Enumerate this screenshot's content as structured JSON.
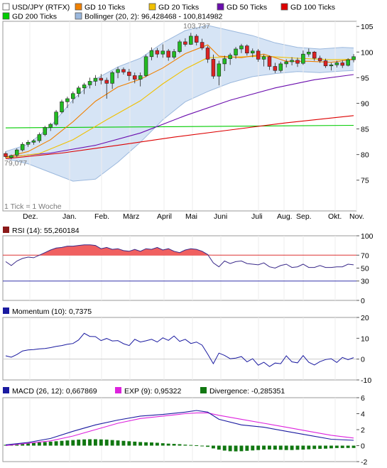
{
  "colors": {
    "up": "#22bb22",
    "down": "#dd2222",
    "gd10": "#f08000",
    "gd20": "#f0c000",
    "gd50": "#6a0dad",
    "gd100": "#dd0000",
    "gd200": "#00cc00",
    "band_fill": "#d6e4f5",
    "band_line": "#9bb8dd",
    "rsi_line": "#3a2a8a",
    "rsi_fill": "#f06060",
    "rsi_upper": "#dd3333",
    "rsi_lower": "#3333aa",
    "momentum": "#1a1aa0",
    "macd": "#1a1aa0",
    "exp": "#dd22dd",
    "divergence": "#117711"
  },
  "chart_data": [
    {
      "type": "candlestick",
      "legend": [
        {
          "key": "main",
          "label": "USD/JPY (RTFX)",
          "color": "#ffffff"
        },
        {
          "key": "gd10",
          "label": "GD 10 Ticks",
          "color": "#f08000"
        },
        {
          "key": "gd20",
          "label": "GD 20 Ticks",
          "color": "#f0c000"
        },
        {
          "key": "gd50",
          "label": "GD 50 Ticks",
          "color": "#6a0dad"
        },
        {
          "key": "gd100",
          "label": "GD 100 Ticks",
          "color": "#dd0000"
        },
        {
          "key": "gd200",
          "label": "GD 200 Ticks",
          "color": "#00cc00"
        },
        {
          "key": "boll",
          "label": "Bollinger (20, 2): 96,428468 - 100,814982",
          "color": "#9bb8dd"
        }
      ],
      "x_labels": [
        "Dez.",
        "Jan.",
        "Feb.",
        "März",
        "April",
        "Mai",
        "Juni",
        "Juli",
        "Aug.",
        "Sep.",
        "Okt.",
        "Nov."
      ],
      "y_ticks": [
        75,
        80,
        85,
        90,
        95,
        100,
        105
      ],
      "ylim": [
        69,
        106
      ],
      "note": "1 Tick = 1 Woche",
      "high_label": "103,737",
      "low_label": "79,077",
      "candles": [
        {
          "o": 80.2,
          "h": 80.6,
          "l": 79.3,
          "c": 79.6
        },
        {
          "o": 79.4,
          "h": 80.0,
          "l": 79.08,
          "c": 79.8
        },
        {
          "o": 79.9,
          "h": 81.2,
          "l": 79.5,
          "c": 80.9
        },
        {
          "o": 80.9,
          "h": 82.4,
          "l": 80.6,
          "c": 82.0
        },
        {
          "o": 82.0,
          "h": 82.8,
          "l": 81.5,
          "c": 82.4
        },
        {
          "o": 82.4,
          "h": 83.0,
          "l": 81.9,
          "c": 82.7
        },
        {
          "o": 82.7,
          "h": 84.3,
          "l": 82.3,
          "c": 83.9
        },
        {
          "o": 83.9,
          "h": 85.6,
          "l": 83.6,
          "c": 85.3
        },
        {
          "o": 85.3,
          "h": 86.2,
          "l": 84.6,
          "c": 85.9
        },
        {
          "o": 85.9,
          "h": 88.7,
          "l": 85.6,
          "c": 88.3
        },
        {
          "o": 88.3,
          "h": 90.7,
          "l": 88.0,
          "c": 90.3
        },
        {
          "o": 90.3,
          "h": 91.3,
          "l": 89.1,
          "c": 90.9
        },
        {
          "o": 90.9,
          "h": 92.3,
          "l": 90.0,
          "c": 91.9
        },
        {
          "o": 91.9,
          "h": 93.4,
          "l": 91.2,
          "c": 93.0
        },
        {
          "o": 93.0,
          "h": 94.0,
          "l": 91.8,
          "c": 93.6
        },
        {
          "o": 93.6,
          "h": 95.0,
          "l": 92.9,
          "c": 94.3
        },
        {
          "o": 94.3,
          "h": 95.5,
          "l": 93.4,
          "c": 94.9
        },
        {
          "o": 94.9,
          "h": 95.7,
          "l": 93.7,
          "c": 94.5
        },
        {
          "o": 94.5,
          "h": 95.0,
          "l": 90.9,
          "c": 93.9
        },
        {
          "o": 93.9,
          "h": 96.3,
          "l": 92.8,
          "c": 96.0
        },
        {
          "o": 96.0,
          "h": 97.1,
          "l": 94.9,
          "c": 96.6
        },
        {
          "o": 96.6,
          "h": 97.0,
          "l": 95.6,
          "c": 96.1
        },
        {
          "o": 96.1,
          "h": 96.7,
          "l": 94.4,
          "c": 95.4
        },
        {
          "o": 95.4,
          "h": 96.0,
          "l": 93.9,
          "c": 94.7
        },
        {
          "o": 94.7,
          "h": 96.0,
          "l": 93.3,
          "c": 95.4
        },
        {
          "o": 95.4,
          "h": 99.5,
          "l": 95.1,
          "c": 99.1
        },
        {
          "o": 99.1,
          "h": 100.9,
          "l": 98.4,
          "c": 100.3
        },
        {
          "o": 100.3,
          "h": 100.8,
          "l": 98.9,
          "c": 99.6
        },
        {
          "o": 99.6,
          "h": 101.5,
          "l": 98.9,
          "c": 100.2
        },
        {
          "o": 100.2,
          "h": 100.6,
          "l": 98.3,
          "c": 99.0
        },
        {
          "o": 99.0,
          "h": 100.6,
          "l": 98.6,
          "c": 100.1
        },
        {
          "o": 100.1,
          "h": 102.4,
          "l": 99.8,
          "c": 102.0
        },
        {
          "o": 102.0,
          "h": 102.7,
          "l": 101.1,
          "c": 101.5
        },
        {
          "o": 101.5,
          "h": 103.737,
          "l": 101.4,
          "c": 103.1
        },
        {
          "o": 103.1,
          "h": 103.5,
          "l": 101.3,
          "c": 101.9
        },
        {
          "o": 101.9,
          "h": 102.6,
          "l": 100.4,
          "c": 100.8
        },
        {
          "o": 100.8,
          "h": 101.2,
          "l": 97.9,
          "c": 98.6
        },
        {
          "o": 98.6,
          "h": 99.5,
          "l": 94.8,
          "c": 95.3
        },
        {
          "o": 95.3,
          "h": 98.3,
          "l": 93.5,
          "c": 97.7
        },
        {
          "o": 97.7,
          "h": 99.3,
          "l": 96.3,
          "c": 98.7
        },
        {
          "o": 98.7,
          "h": 99.8,
          "l": 97.5,
          "c": 99.4
        },
        {
          "o": 99.4,
          "h": 101.0,
          "l": 98.7,
          "c": 100.6
        },
        {
          "o": 100.6,
          "h": 101.6,
          "l": 99.8,
          "c": 101.2
        },
        {
          "o": 101.2,
          "h": 101.5,
          "l": 99.3,
          "c": 99.8
        },
        {
          "o": 99.8,
          "h": 100.7,
          "l": 99.0,
          "c": 100.2
        },
        {
          "o": 100.2,
          "h": 100.6,
          "l": 98.1,
          "c": 98.6
        },
        {
          "o": 98.6,
          "h": 99.5,
          "l": 97.2,
          "c": 99.1
        },
        {
          "o": 99.1,
          "h": 99.3,
          "l": 96.5,
          "c": 97.2
        },
        {
          "o": 97.2,
          "h": 97.9,
          "l": 95.9,
          "c": 96.4
        },
        {
          "o": 96.4,
          "h": 98.1,
          "l": 96.0,
          "c": 97.7
        },
        {
          "o": 97.7,
          "h": 98.6,
          "l": 97.0,
          "c": 98.1
        },
        {
          "o": 98.1,
          "h": 99.0,
          "l": 97.4,
          "c": 98.4
        },
        {
          "o": 98.4,
          "h": 98.9,
          "l": 97.1,
          "c": 97.8
        },
        {
          "o": 97.8,
          "h": 100.3,
          "l": 97.5,
          "c": 99.6
        },
        {
          "o": 99.6,
          "h": 100.7,
          "l": 99.1,
          "c": 100.0
        },
        {
          "o": 100.0,
          "h": 100.2,
          "l": 98.3,
          "c": 98.8
        },
        {
          "o": 98.8,
          "h": 99.3,
          "l": 97.9,
          "c": 98.3
        },
        {
          "o": 98.3,
          "h": 98.7,
          "l": 96.9,
          "c": 97.3
        },
        {
          "o": 97.3,
          "h": 97.9,
          "l": 96.4,
          "c": 97.5
        },
        {
          "o": 97.5,
          "h": 98.3,
          "l": 97.0,
          "c": 97.9
        },
        {
          "o": 97.9,
          "h": 98.4,
          "l": 96.9,
          "c": 97.4
        },
        {
          "o": 97.4,
          "h": 98.8,
          "l": 97.2,
          "c": 98.5
        },
        {
          "o": 98.5,
          "h": 99.6,
          "l": 98.0,
          "c": 99.1
        }
      ],
      "lines": {
        "gd200": [
          [
            0,
            85.2
          ],
          [
            62,
            85.7
          ]
        ],
        "gd100": [
          [
            0,
            79.2
          ],
          [
            10,
            80.3
          ],
          [
            20,
            81.8
          ],
          [
            30,
            83.4
          ],
          [
            40,
            84.8
          ],
          [
            50,
            86.2
          ],
          [
            62,
            87.6
          ]
        ],
        "gd50": [
          [
            0,
            79.5
          ],
          [
            8,
            80.3
          ],
          [
            16,
            81.8
          ],
          [
            24,
            84.2
          ],
          [
            32,
            87.6
          ],
          [
            40,
            90.6
          ],
          [
            48,
            93.0
          ],
          [
            55,
            94.6
          ],
          [
            62,
            95.6
          ]
        ],
        "gd20": [
          [
            0,
            79.4
          ],
          [
            6,
            80.2
          ],
          [
            12,
            82.9
          ],
          [
            18,
            86.8
          ],
          [
            24,
            90.5
          ],
          [
            28,
            93.8
          ],
          [
            32,
            96.7
          ],
          [
            36,
            98.9
          ],
          [
            40,
            99.0
          ],
          [
            46,
            99.2
          ],
          [
            52,
            98.8
          ],
          [
            58,
            98.5
          ],
          [
            62,
            98.6
          ]
        ],
        "gd10": [
          [
            0,
            79.5
          ],
          [
            4,
            80.6
          ],
          [
            8,
            82.9
          ],
          [
            12,
            86.4
          ],
          [
            16,
            90.4
          ],
          [
            20,
            93.2
          ],
          [
            24,
            94.7
          ],
          [
            28,
            96.9
          ],
          [
            32,
            99.7
          ],
          [
            36,
            101.4
          ],
          [
            38,
            99.2
          ],
          [
            42,
            98.9
          ],
          [
            46,
            99.6
          ],
          [
            50,
            98.2
          ],
          [
            54,
            98.2
          ],
          [
            58,
            98.0
          ],
          [
            62,
            98.6
          ]
        ],
        "boll_upper": [
          [
            0,
            80.6
          ],
          [
            4,
            82.0
          ],
          [
            8,
            85.5
          ],
          [
            12,
            90.7
          ],
          [
            16,
            94.7
          ],
          [
            20,
            97.1
          ],
          [
            24,
            98.8
          ],
          [
            28,
            101.8
          ],
          [
            32,
            104.2
          ],
          [
            36,
            105.2
          ],
          [
            40,
            104.2
          ],
          [
            44,
            103.2
          ],
          [
            48,
            101.8
          ],
          [
            52,
            100.9
          ],
          [
            56,
            100.6
          ],
          [
            60,
            100.9
          ],
          [
            62,
            100.8
          ]
        ],
        "boll_lower": [
          [
            0,
            79.2
          ],
          [
            4,
            78.2
          ],
          [
            8,
            76.5
          ],
          [
            12,
            74.8
          ],
          [
            16,
            75.2
          ],
          [
            20,
            78.5
          ],
          [
            24,
            82.4
          ],
          [
            28,
            86.8
          ],
          [
            32,
            90.3
          ],
          [
            36,
            92.3
          ],
          [
            40,
            94.0
          ],
          [
            44,
            95.2
          ],
          [
            48,
            95.8
          ],
          [
            52,
            96.2
          ],
          [
            56,
            96.0
          ],
          [
            60,
            96.3
          ],
          [
            62,
            96.4
          ]
        ]
      }
    },
    {
      "type": "line",
      "title": "RSI (14): 55,260184",
      "y_ticks": [
        0,
        30,
        50,
        70,
        100
      ],
      "y_tick_labels": [
        "0",
        "30",
        "50",
        "70",
        "100"
      ],
      "ylim": [
        0,
        100
      ],
      "reference_lines": [
        70,
        30
      ],
      "values": [
        60,
        54,
        61,
        65,
        67,
        66,
        70,
        74,
        78,
        81,
        82,
        84,
        84,
        85,
        86,
        86,
        85,
        80,
        82,
        79,
        80,
        77,
        76,
        79,
        76,
        80,
        79,
        82,
        78,
        80,
        76,
        74,
        78,
        80,
        79,
        76,
        71,
        58,
        52,
        61,
        57,
        60,
        61,
        57,
        56,
        55,
        58,
        52,
        50,
        54,
        56,
        51,
        52,
        56,
        51,
        51,
        54,
        51,
        51,
        52,
        52,
        56,
        55
      ]
    },
    {
      "type": "line",
      "title": "Momentum (10): 0,7375",
      "y_ticks": [
        -10,
        0,
        10,
        20
      ],
      "ylim": [
        -10,
        20
      ],
      "values": [
        1.6,
        0.9,
        2.2,
        3.9,
        4.4,
        4.6,
        4.9,
        5.1,
        5.5,
        6.1,
        6.5,
        7.1,
        7.5,
        9.2,
        12.4,
        10.9,
        10.8,
        8.9,
        9.9,
        8.7,
        8.9,
        7.4,
        6.5,
        9.5,
        8.2,
        8.8,
        9.5,
        8.2,
        10.2,
        9.0,
        11.1,
        8.5,
        9.5,
        7.5,
        8.2,
        6.7,
        2.4,
        -2.2,
        2.9,
        1.8,
        0.2,
        0.5,
        1.2,
        -1.3,
        0.2,
        -2.9,
        -1.5,
        -3.6,
        -1.9,
        -2.2,
        1.6,
        -1.3,
        -1.8,
        1.7,
        -1.5,
        -2.8,
        -1.2,
        -0.2,
        0.2,
        -1.6,
        0.8,
        -0.3,
        0.7
      ]
    },
    {
      "type": "line",
      "legend": [
        {
          "label": "MACD (26, 12): 0,667869",
          "color": "#1a1aa0"
        },
        {
          "label": "EXP (9): 0,95322",
          "color": "#dd22dd"
        },
        {
          "label": "Divergence: -0,285351",
          "color": "#117711"
        }
      ],
      "y_ticks": [
        -2,
        0,
        2,
        4,
        6
      ],
      "ylim": [
        -2,
        6
      ],
      "macd": [
        [
          0,
          0.1
        ],
        [
          4,
          0.4
        ],
        [
          8,
          0.9
        ],
        [
          12,
          1.8
        ],
        [
          16,
          2.6
        ],
        [
          20,
          3.2
        ],
        [
          24,
          3.7
        ],
        [
          28,
          3.9
        ],
        [
          32,
          4.2
        ],
        [
          34,
          4.4
        ],
        [
          36,
          4.2
        ],
        [
          38,
          3.3
        ],
        [
          42,
          2.6
        ],
        [
          46,
          2.3
        ],
        [
          50,
          1.8
        ],
        [
          54,
          1.3
        ],
        [
          58,
          0.8
        ],
        [
          62,
          0.67
        ]
      ],
      "exp": [
        [
          0,
          0.0
        ],
        [
          4,
          0.3
        ],
        [
          8,
          0.6
        ],
        [
          12,
          1.2
        ],
        [
          16,
          2.0
        ],
        [
          20,
          2.8
        ],
        [
          24,
          3.4
        ],
        [
          28,
          3.7
        ],
        [
          32,
          4.0
        ],
        [
          34,
          4.1
        ],
        [
          36,
          4.1
        ],
        [
          38,
          3.8
        ],
        [
          42,
          3.3
        ],
        [
          46,
          2.8
        ],
        [
          50,
          2.3
        ],
        [
          54,
          1.8
        ],
        [
          58,
          1.3
        ],
        [
          62,
          0.95
        ]
      ],
      "divergence": [
        0.1,
        0.15,
        0.2,
        0.25,
        0.3,
        0.35,
        0.4,
        0.45,
        0.5,
        0.55,
        0.6,
        0.65,
        0.7,
        0.75,
        0.78,
        0.8,
        0.8,
        0.78,
        0.75,
        0.7,
        0.65,
        0.6,
        0.55,
        0.5,
        0.45,
        0.42,
        0.4,
        0.36,
        0.3,
        0.25,
        0.22,
        0.18,
        0.12,
        0.08,
        0.05,
        -0.05,
        -0.15,
        -0.35,
        -0.5,
        -0.62,
        -0.7,
        -0.72,
        -0.7,
        -0.65,
        -0.6,
        -0.55,
        -0.5,
        -0.48,
        -0.5,
        -0.52,
        -0.55,
        -0.55,
        -0.52,
        -0.5,
        -0.46,
        -0.42,
        -0.4,
        -0.38,
        -0.34,
        -0.3,
        -0.3,
        -0.29,
        -0.29
      ]
    }
  ]
}
